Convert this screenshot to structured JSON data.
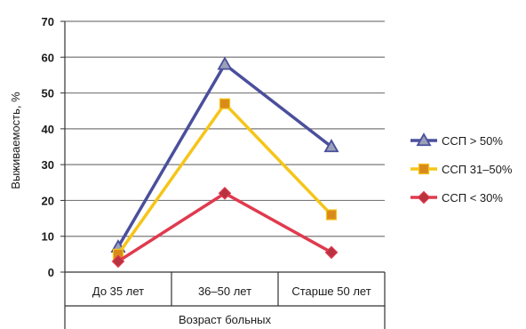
{
  "chart_data": {
    "type": "line",
    "title": "",
    "xlabel": "Возраст больных",
    "ylabel": "Выживаемость, %",
    "categories": [
      "До 35 лет",
      "36–50 лет",
      "Старше 50 лет"
    ],
    "ylim": [
      0,
      70
    ],
    "yticks": [
      0,
      10,
      20,
      30,
      40,
      50,
      60,
      70
    ],
    "grid": true,
    "legend_position": "right",
    "series": [
      {
        "name": "ССП > 50%",
        "values": [
          7,
          58,
          35
        ],
        "color": "#4a4f9c",
        "marker": "triangle"
      },
      {
        "name": "ССП 31–50%",
        "values": [
          5,
          47,
          16
        ],
        "color": "#f5c518",
        "marker": "square"
      },
      {
        "name": "ССП < 30%",
        "values": [
          3,
          22,
          5.5
        ],
        "color": "#e03a4e",
        "marker": "diamond"
      }
    ]
  }
}
